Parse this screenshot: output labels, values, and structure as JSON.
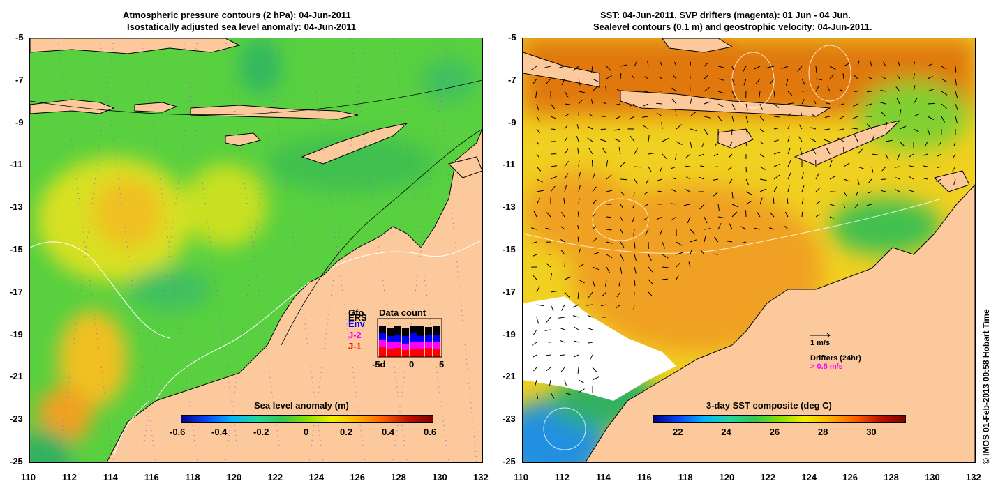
{
  "left_panel": {
    "title_line1": "Atmospheric pressure contours (2 hPa): 04-Jun-2011",
    "title_line2": "Isostatically adjusted sea level anomaly: 04-Jun-2011",
    "colorbar": {
      "label": "Sea level anomaly (m)",
      "ticks": [
        "-0.6",
        "-0.4",
        "-0.2",
        "0",
        "0.2",
        "0.4",
        "0.6"
      ],
      "colors": [
        "#00008f",
        "#0048ff",
        "#00b4ff",
        "#20d8a0",
        "#30c850",
        "#88e000",
        "#f0f000",
        "#ffb000",
        "#ff6000",
        "#c01000",
        "#800000"
      ]
    },
    "data_count": {
      "title": "Data count",
      "legend": [
        {
          "label": "Gfo",
          "color": "#000000"
        },
        {
          "label": "ERS",
          "color": "#000000"
        },
        {
          "label": "Env",
          "color": "#0000ff"
        },
        {
          "label": "J-2",
          "color": "#ff00ff"
        },
        {
          "label": "J-1",
          "color": "#ff0000"
        }
      ],
      "x_ticks": [
        "-5d",
        "0",
        "5"
      ]
    }
  },
  "right_panel": {
    "title_line1": "SST: 04-Jun-2011. SVP drifters (magenta): 01 Jun - 04 Jun.",
    "title_line2": "Sealevel contours (0.1 m) and geostrophic velocity: 04-Jun-2011.",
    "colorbar": {
      "label": "3-day SST composite (deg C)",
      "ticks": [
        "22",
        "24",
        "26",
        "28",
        "30"
      ],
      "colors": [
        "#00008f",
        "#0048ff",
        "#00b4ff",
        "#20d8a0",
        "#30c850",
        "#88e000",
        "#f0f000",
        "#ffb000",
        "#ff6000",
        "#c01000",
        "#800000"
      ]
    },
    "velocity_legend": "1 m/s",
    "drifter_legend_title": "Drifters (24hr)",
    "drifter_legend_value": "> 0.5 m/s"
  },
  "axes": {
    "lat_ticks": [
      "-5",
      "-7",
      "-9",
      "-11",
      "-13",
      "-15",
      "-17",
      "-19",
      "-21",
      "-23",
      "-25"
    ],
    "lon_ticks": [
      "110",
      "112",
      "114",
      "116",
      "118",
      "120",
      "122",
      "124",
      "126",
      "128",
      "130",
      "132"
    ]
  },
  "colors": {
    "land": "#fbc99c",
    "sea_base": "#58d040",
    "sst_base": "#f0d020"
  },
  "credit": "© IMOS 01-Feb-2013 00:58 Hobart Time"
}
